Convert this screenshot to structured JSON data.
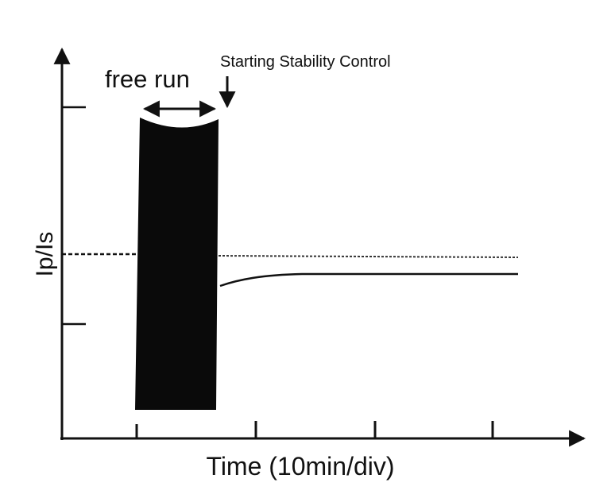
{
  "labels": {
    "annotation": "Starting Stability Control",
    "free_run": "free run",
    "y_axis": "Ip/Is",
    "x_axis": "Time (10min/div)"
  }
}
